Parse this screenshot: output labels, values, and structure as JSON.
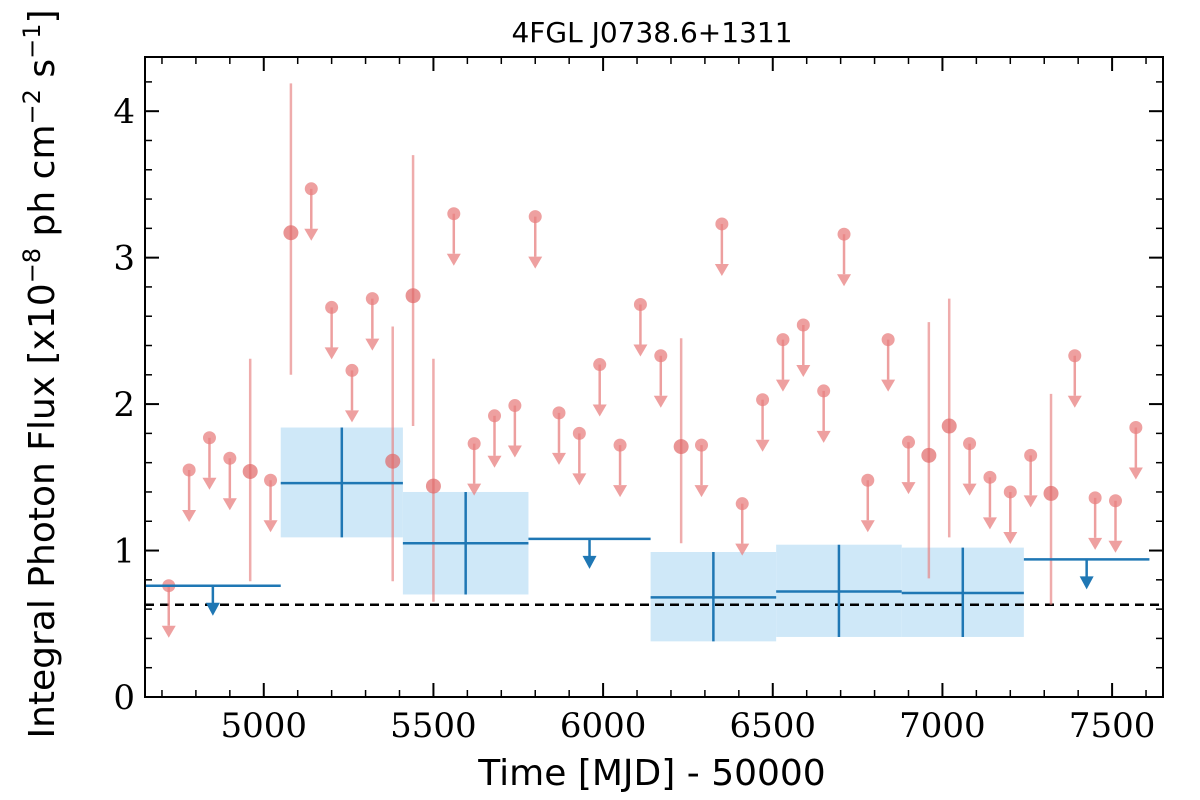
{
  "chart_data": {
    "type": "scatter",
    "title": "4FGL J0738.6+1311",
    "xlabel": "Time [MJD] - 50000",
    "ylabel": "Integral Photon Flux [x10",
    "ylabel_exp1": "−8",
    "ylabel_mid": " ph cm",
    "ylabel_exp2": "−2",
    "ylabel_mid2": " s",
    "ylabel_exp3": "−1",
    "ylabel_end": "]",
    "xlim": [
      4650,
      7650
    ],
    "ylim": [
      0,
      4.37
    ],
    "xticks": [
      5000,
      5500,
      6000,
      6500,
      7000,
      7500
    ],
    "xtick_labels": [
      "5000",
      "5500",
      "6000",
      "6500",
      "7000",
      "7500"
    ],
    "yticks": [
      0,
      1,
      2,
      3,
      4
    ],
    "ytick_labels": [
      "0",
      "1",
      "2",
      "3",
      "4"
    ],
    "reference_line": {
      "y": 0.63,
      "style": "dashed",
      "color": "#000000"
    },
    "colors": {
      "short_bins": "#e88080",
      "long_bins": "#1f77b4",
      "long_band": "#cfe8f8"
    },
    "short_bins": [
      {
        "x": 4720,
        "y": 0.76,
        "ul": true
      },
      {
        "x": 4780,
        "y": 1.55,
        "ul": true
      },
      {
        "x": 4840,
        "y": 1.77,
        "ul": true
      },
      {
        "x": 4900,
        "y": 1.63,
        "ul": true
      },
      {
        "x": 4960,
        "y": 1.54,
        "ul": false,
        "lo": 0.79,
        "hi": 2.31
      },
      {
        "x": 5020,
        "y": 1.48,
        "ul": true
      },
      {
        "x": 5080,
        "y": 3.17,
        "ul": false,
        "lo": 2.2,
        "hi": 4.19
      },
      {
        "x": 5140,
        "y": 3.47,
        "ul": true
      },
      {
        "x": 5200,
        "y": 2.66,
        "ul": true
      },
      {
        "x": 5260,
        "y": 2.23,
        "ul": true
      },
      {
        "x": 5320,
        "y": 2.72,
        "ul": true
      },
      {
        "x": 5380,
        "y": 1.61,
        "ul": false,
        "lo": 0.79,
        "hi": 2.53
      },
      {
        "x": 5440,
        "y": 2.74,
        "ul": false,
        "lo": 1.85,
        "hi": 3.7
      },
      {
        "x": 5500,
        "y": 1.44,
        "ul": false,
        "lo": 0.65,
        "hi": 2.31
      },
      {
        "x": 5560,
        "y": 3.3,
        "ul": true
      },
      {
        "x": 5620,
        "y": 1.73,
        "ul": true
      },
      {
        "x": 5680,
        "y": 1.92,
        "ul": true
      },
      {
        "x": 5740,
        "y": 1.99,
        "ul": true
      },
      {
        "x": 5800,
        "y": 3.28,
        "ul": true
      },
      {
        "x": 5870,
        "y": 1.94,
        "ul": true
      },
      {
        "x": 5930,
        "y": 1.8,
        "ul": true
      },
      {
        "x": 5990,
        "y": 2.27,
        "ul": true
      },
      {
        "x": 6050,
        "y": 1.72,
        "ul": true
      },
      {
        "x": 6110,
        "y": 2.68,
        "ul": true
      },
      {
        "x": 6170,
        "y": 2.33,
        "ul": true
      },
      {
        "x": 6230,
        "y": 1.71,
        "ul": false,
        "lo": 1.05,
        "hi": 2.45
      },
      {
        "x": 6290,
        "y": 1.72,
        "ul": true
      },
      {
        "x": 6350,
        "y": 3.23,
        "ul": true
      },
      {
        "x": 6410,
        "y": 1.32,
        "ul": true
      },
      {
        "x": 6470,
        "y": 2.03,
        "ul": true
      },
      {
        "x": 6530,
        "y": 2.44,
        "ul": true
      },
      {
        "x": 6590,
        "y": 2.54,
        "ul": true
      },
      {
        "x": 6650,
        "y": 2.09,
        "ul": true
      },
      {
        "x": 6710,
        "y": 3.16,
        "ul": true
      },
      {
        "x": 6780,
        "y": 1.48,
        "ul": true
      },
      {
        "x": 6840,
        "y": 2.44,
        "ul": true
      },
      {
        "x": 6900,
        "y": 1.74,
        "ul": true
      },
      {
        "x": 6960,
        "y": 1.65,
        "ul": false,
        "lo": 0.81,
        "hi": 2.56
      },
      {
        "x": 7020,
        "y": 1.85,
        "ul": false,
        "lo": 1.09,
        "hi": 2.72
      },
      {
        "x": 7080,
        "y": 1.73,
        "ul": true
      },
      {
        "x": 7140,
        "y": 1.5,
        "ul": true
      },
      {
        "x": 7200,
        "y": 1.4,
        "ul": true
      },
      {
        "x": 7260,
        "y": 1.65,
        "ul": true
      },
      {
        "x": 7320,
        "y": 1.39,
        "ul": false,
        "lo": 0.63,
        "hi": 2.07
      },
      {
        "x": 7390,
        "y": 2.33,
        "ul": true
      },
      {
        "x": 7450,
        "y": 1.36,
        "ul": true
      },
      {
        "x": 7510,
        "y": 1.34,
        "ul": true
      },
      {
        "x": 7570,
        "y": 1.84,
        "ul": true
      }
    ],
    "long_bins": [
      {
        "x0": 4650,
        "x1": 5050,
        "y": 0.76,
        "ul": true
      },
      {
        "x0": 5050,
        "x1": 5410,
        "y": 1.46,
        "lo": 1.09,
        "hi": 1.84,
        "ul": false
      },
      {
        "x0": 5410,
        "x1": 5780,
        "y": 1.05,
        "lo": 0.7,
        "hi": 1.4,
        "ul": false
      },
      {
        "x0": 5780,
        "x1": 6140,
        "y": 1.08,
        "ul": true
      },
      {
        "x0": 6140,
        "x1": 6510,
        "y": 0.68,
        "lo": 0.38,
        "hi": 0.99,
        "ul": false
      },
      {
        "x0": 6510,
        "x1": 6880,
        "y": 0.72,
        "lo": 0.41,
        "hi": 1.04,
        "ul": false
      },
      {
        "x0": 6880,
        "x1": 7240,
        "y": 0.71,
        "lo": 0.41,
        "hi": 1.02,
        "ul": false
      },
      {
        "x0": 7240,
        "x1": 7610,
        "y": 0.94,
        "ul": true
      }
    ]
  }
}
